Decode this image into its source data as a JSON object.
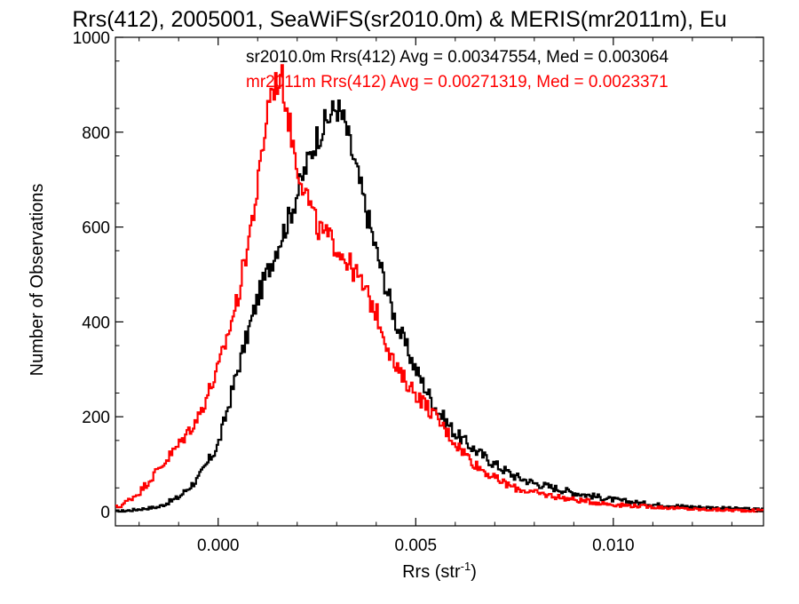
{
  "chart_data": {
    "type": "line",
    "title": "Rrs(412), 2005001, SeaWiFS(sr2010.0m) & MERIS(mr2011m), Eu",
    "xlabel_main": "Rrs (str",
    "xlabel_sup": "-1",
    "xlabel_close": ")",
    "ylabel": "Number of Observations",
    "xlim": [
      -0.0026,
      0.0138
    ],
    "ylim": [
      -30,
      1000
    ],
    "xticks": [
      0.0,
      0.005,
      0.01
    ],
    "xtick_labels": [
      "0.000",
      "0.005",
      "0.010"
    ],
    "yticks": [
      0,
      200,
      400,
      600,
      800,
      1000
    ],
    "ytick_labels": [
      "0",
      "200",
      "400",
      "600",
      "800",
      "1000"
    ],
    "grid": false,
    "legend_position": "top",
    "series": [
      {
        "name": "sr2010.0m Rrs(412) Avg = 0.00347554, Med = 0.003064",
        "color": "#000000",
        "x": [
          -0.0025,
          -0.002,
          -0.0015,
          -0.001,
          -0.0005,
          0.0,
          0.0005,
          0.001,
          0.0015,
          0.0018,
          0.0022,
          0.0025,
          0.0028,
          0.003,
          0.0032,
          0.0035,
          0.004,
          0.0045,
          0.005,
          0.0055,
          0.006,
          0.0065,
          0.007,
          0.0075,
          0.008,
          0.009,
          0.01,
          0.011,
          0.012,
          0.0135
        ],
        "y": [
          0,
          5,
          10,
          30,
          70,
          140,
          300,
          450,
          560,
          620,
          720,
          790,
          830,
          855,
          820,
          720,
          550,
          400,
          300,
          220,
          165,
          130,
          100,
          75,
          60,
          40,
          25,
          15,
          10,
          5
        ]
      },
      {
        "name": "mr2011m Rrs(412) Avg = 0.00271319, Med = 0.0023371",
        "color": "#ff0000",
        "x": [
          -0.0025,
          -0.002,
          -0.0015,
          -0.001,
          -0.0005,
          0.0,
          0.0005,
          0.001,
          0.0013,
          0.0016,
          0.0018,
          0.002,
          0.0022,
          0.0025,
          0.003,
          0.0035,
          0.004,
          0.0045,
          0.005,
          0.0055,
          0.006,
          0.0065,
          0.007,
          0.0075,
          0.008,
          0.009,
          0.01,
          0.011,
          0.012,
          0.0135
        ],
        "y": [
          10,
          40,
          90,
          140,
          200,
          300,
          450,
          680,
          880,
          920,
          820,
          730,
          680,
          600,
          560,
          500,
          420,
          300,
          250,
          200,
          145,
          100,
          70,
          50,
          40,
          25,
          15,
          10,
          5,
          2
        ]
      }
    ]
  }
}
